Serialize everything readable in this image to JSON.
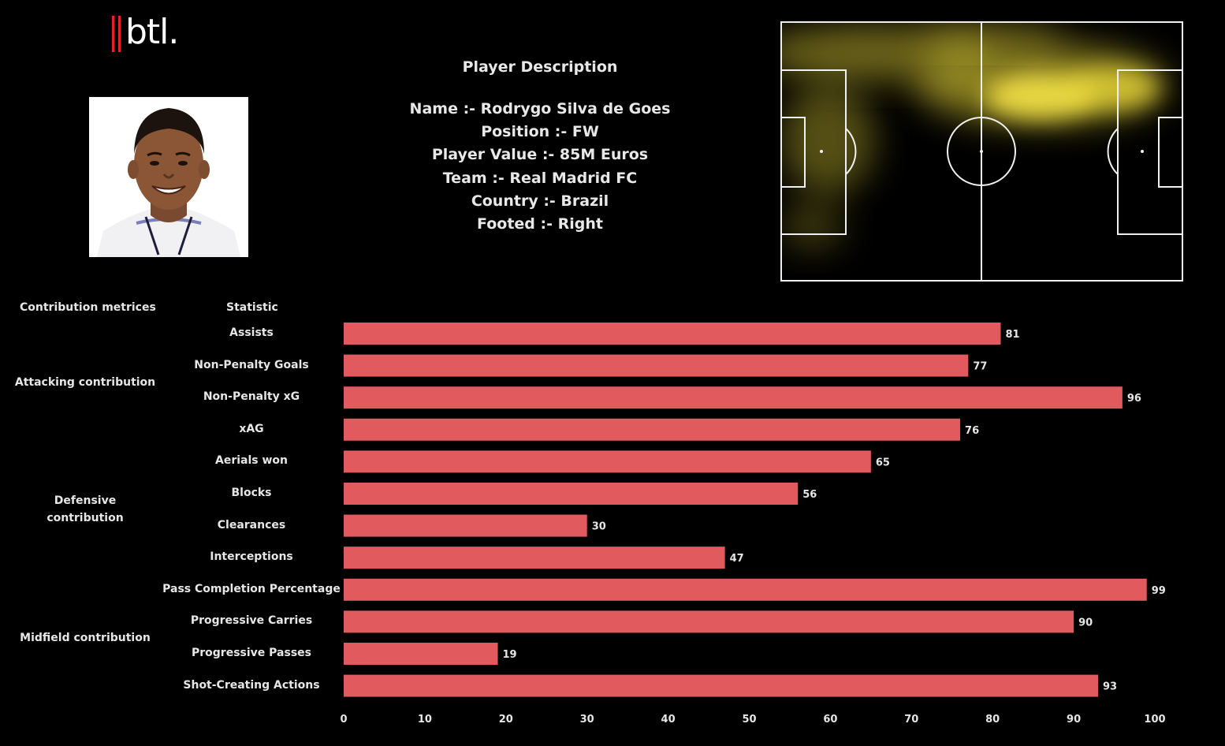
{
  "logo": {
    "text": "btl.",
    "accent": "#e5212a"
  },
  "player": {
    "title": "Player Description",
    "lines": [
      "Name :- Rodrygo Silva de Goes",
      "Position :- FW",
      "Player Value :- 85M Euros",
      "Team :- Real Madrid FC",
      "Country :- Brazil",
      "Footed :- Right"
    ]
  },
  "headers": {
    "group": "Contribution metrices",
    "stat": "Statistic"
  },
  "groups": [
    {
      "label": "Attacking contribution"
    },
    {
      "label": "Defensive\ncontribution"
    },
    {
      "label": "Midfield contribution"
    }
  ],
  "chart_data": {
    "type": "bar",
    "orientation": "horizontal",
    "categories": [
      "Assists",
      "Non-Penalty Goals",
      "Non-Penalty xG",
      "xAG",
      "Aerials won",
      "Blocks",
      "Clearances",
      "Interceptions",
      "Pass Completion Percentage",
      "Progressive Carries",
      "Progressive Passes",
      "Shot-Creating Actions"
    ],
    "values": [
      81,
      77,
      96,
      76,
      65,
      56,
      30,
      47,
      99,
      90,
      19,
      93
    ],
    "xlim": [
      0,
      100
    ],
    "xticks": [
      0,
      10,
      20,
      30,
      40,
      50,
      60,
      70,
      80,
      90,
      100
    ],
    "bar_color": "#e05a5e",
    "data_labels": true,
    "grid": false
  },
  "heatmap": {
    "color": "#f2df3a",
    "line_color": "#f0f0f0"
  }
}
